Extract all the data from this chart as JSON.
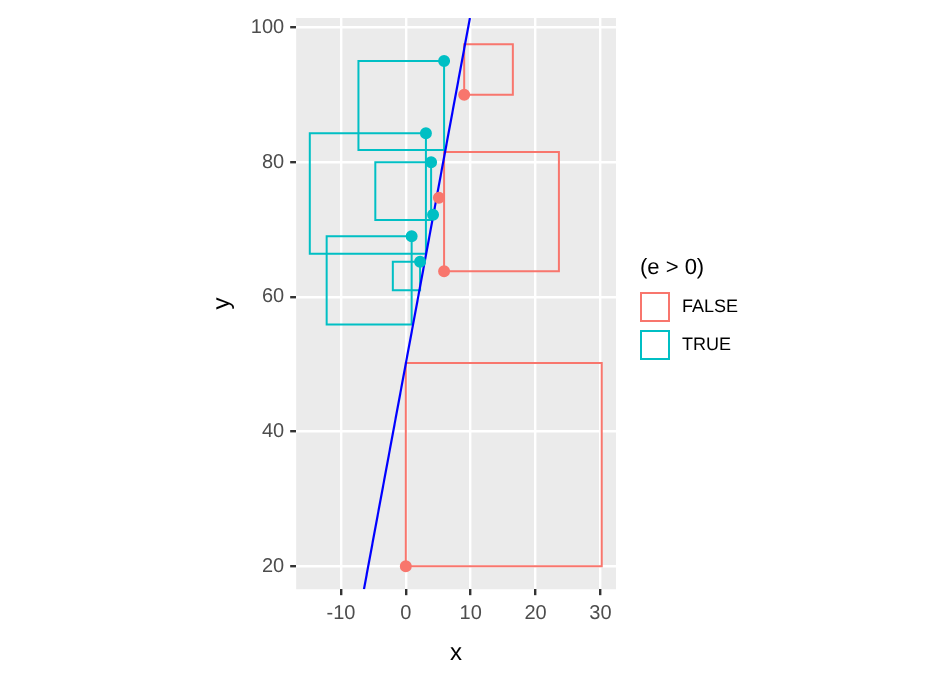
{
  "chart_data": {
    "type": "scatter",
    "xlabel": "x",
    "ylabel": "y",
    "legend_title": "(e > 0)",
    "legend": "right",
    "grid": true,
    "marker": "circle",
    "xlim": [
      -16.9,
      32.4
    ],
    "xticks": [
      -10,
      0,
      10,
      20,
      30
    ],
    "ylim": [
      16.6,
      101.4
    ],
    "yticks": [
      20,
      40,
      60,
      80,
      100
    ],
    "series": [
      {
        "type": "bar",
        "color": "#f8766d",
        "x": [
          15.1,
          14.75,
          12.75
        ],
        "base": [
          20,
          63.8,
          90
        ],
        "values": [
          30.2,
          17.7,
          7.5
        ]
      },
      {
        "type": "bar",
        "color": "#00bfc4",
        "x": [
          -5.85,
          -5.65,
          -0.7,
          -0.4,
          0.1
        ],
        "base": [
          66.4,
          55.9,
          81.8,
          71.4,
          61.0
        ],
        "values": [
          17.9,
          13.1,
          13.2,
          8.6,
          4.2
        ]
      },
      {
        "type": "line",
        "marker": "none",
        "color": "#0000ff",
        "x": [
          -6.45,
          9.88
        ],
        "values": [
          16.6,
          101.4
        ]
      },
      {
        "name": "FALSE",
        "color": "#f8766d",
        "x": [
          0,
          5.9,
          5.1,
          9.0
        ],
        "values": [
          20,
          63.8,
          74.7,
          90
        ]
      },
      {
        "name": "TRUE",
        "color": "#00bfc4",
        "x": [
          5.9,
          3.9,
          4.2,
          3.1,
          0.9,
          2.2
        ],
        "values": [
          95,
          80,
          72.2,
          84.3,
          69,
          65.2
        ]
      }
    ]
  }
}
